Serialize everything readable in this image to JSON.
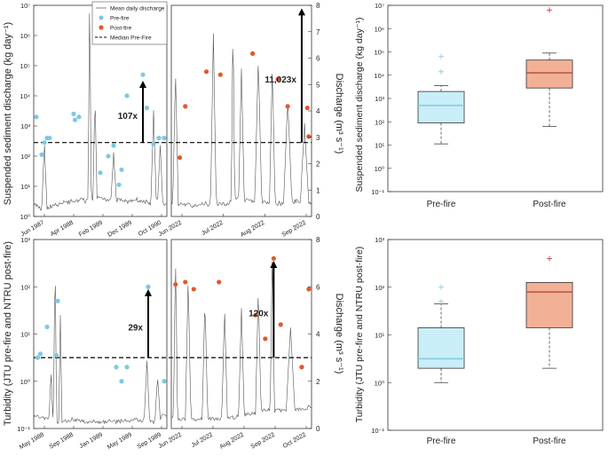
{
  "legend": {
    "mean_label": "Mean daily discharge",
    "pre_label": "Pre-fire",
    "post_label": "Post-fire",
    "median_label": "Median Pre-Fire"
  },
  "colors": {
    "pre": "#7ec8e3",
    "post": "#e0592b",
    "pre_box": "#c9eef7",
    "post_box": "#f2b196",
    "post_median": "#b5533a",
    "discharge_line": "#555555"
  },
  "chart_data": [
    {
      "type": "scatter",
      "ylabel": "Suspended sediment discharge (kg day⁻¹)",
      "yscale": "log",
      "ylim_exp": [
        0,
        7
      ],
      "ytick_labels": [
        "10⁰",
        "10¹",
        "10²",
        "10³",
        "10⁴",
        "10⁵",
        "10⁶",
        "10⁷"
      ],
      "y2label": "Discharge (m³ s⁻¹)",
      "y2lim": [
        0,
        8
      ],
      "y2ticks": [
        0,
        1,
        2,
        3,
        4,
        5,
        6,
        7,
        8
      ],
      "pre_xtick_labels": [
        "Jun 1987",
        "Apr 1988",
        "Feb 1989",
        "Dec 1989",
        "Oct 1990"
      ],
      "post_xtick_labels": [
        "Jun 2022",
        "Jul 2022",
        "Aug 2022",
        "Sep 2022"
      ],
      "pre_fire_points": [
        [
          0.02,
          3.3
        ],
        [
          0.06,
          2.05
        ],
        [
          0.08,
          2.45
        ],
        [
          0.1,
          2.6
        ],
        [
          0.12,
          2.6
        ],
        [
          0.3,
          3.4
        ],
        [
          0.31,
          3.2
        ],
        [
          0.34,
          3.3
        ],
        [
          0.5,
          1.45
        ],
        [
          0.56,
          2.0
        ],
        [
          0.6,
          2.35
        ],
        [
          0.64,
          1.05
        ],
        [
          0.66,
          1.55
        ],
        [
          0.7,
          4.0
        ],
        [
          0.82,
          4.7
        ],
        [
          0.85,
          3.6
        ],
        [
          0.9,
          2.4
        ],
        [
          0.94,
          2.6
        ],
        [
          0.98,
          2.6
        ]
      ],
      "post_fire_points": [
        [
          0.06,
          1.95
        ],
        [
          0.1,
          3.65
        ],
        [
          0.25,
          4.8
        ],
        [
          0.35,
          4.7
        ],
        [
          0.58,
          5.4
        ],
        [
          0.76,
          4.55
        ],
        [
          0.83,
          3.65
        ],
        [
          0.93,
          7.6
        ],
        [
          0.97,
          3.6
        ],
        [
          0.98,
          2.65
        ]
      ],
      "median_pre_fire": 2.45,
      "pre_arrow": {
        "label": "107x",
        "x": 0.82,
        "from": 2.45,
        "to": 4.5
      },
      "post_arrow": {
        "label": "11,023x",
        "x": 0.93,
        "from": 2.45,
        "to": 6.9
      }
    },
    {
      "type": "box",
      "ylabel": "Suspended sediment discharge (kg day⁻¹)",
      "yscale": "log",
      "ylim_exp": [
        -1,
        7
      ],
      "ytick_labels": [
        "10⁻¹",
        "10⁰",
        "10¹",
        "10²",
        "10³",
        "10⁴",
        "10⁵",
        "10⁶",
        "10⁷"
      ],
      "categories": [
        "Pre-fire",
        "Post-fire"
      ],
      "boxes": [
        {
          "whisker_low": 1.05,
          "q1": 1.95,
          "median": 2.7,
          "q3": 3.3,
          "whisker_high": 3.55,
          "outliers": [
            4.15,
            4.8
          ]
        },
        {
          "whisker_low": 1.8,
          "q1": 3.45,
          "median": 4.1,
          "q3": 4.65,
          "whisker_high": 4.95,
          "outliers": [
            6.8
          ]
        }
      ]
    },
    {
      "type": "scatter",
      "ylabel": "Turbidity (JTU pre-fire and NTRU post-fire)",
      "yscale": "log",
      "ylim_exp": [
        -1,
        3
      ],
      "ytick_labels": [
        "10⁻¹",
        "10⁰",
        "10¹",
        "10²",
        "10³"
      ],
      "y2label": "Discharge (m³ s⁻¹)",
      "y2lim": [
        0,
        8
      ],
      "y2ticks": [
        0,
        2,
        4,
        6,
        8
      ],
      "pre_xtick_labels": [
        "May 1988",
        "Sep 1988",
        "Jan 1989",
        "May 1989",
        "Sep 1989"
      ],
      "post_xtick_labels": [
        "Jun 2022",
        "Jul 2022",
        "Aug 2022",
        "Sep 2022",
        "Oct 2022"
      ],
      "pre_fire_points": [
        [
          0.03,
          0.5
        ],
        [
          0.05,
          0.58
        ],
        [
          0.1,
          1.15
        ],
        [
          0.17,
          0.55
        ],
        [
          0.18,
          1.7
        ],
        [
          0.62,
          0.3
        ],
        [
          0.66,
          0.0
        ],
        [
          0.7,
          0.3
        ],
        [
          0.86,
          2.0
        ],
        [
          0.98,
          0.0
        ]
      ],
      "post_fire_points": [
        [
          0.03,
          2.05
        ],
        [
          0.1,
          2.1
        ],
        [
          0.16,
          1.95
        ],
        [
          0.34,
          2.1
        ],
        [
          0.6,
          1.4
        ],
        [
          0.67,
          0.9
        ],
        [
          0.73,
          2.6
        ],
        [
          0.78,
          1.2
        ],
        [
          0.93,
          0.3
        ],
        [
          0.98,
          1.95
        ]
      ],
      "median_pre_fire": 0.5,
      "pre_arrow": {
        "label": "29x",
        "x": 0.86,
        "from": 0.5,
        "to": 1.95
      },
      "post_arrow": {
        "label": "120x",
        "x": 0.73,
        "from": 0.5,
        "to": 2.55
      }
    },
    {
      "type": "box",
      "ylabel": "Turbidity (JTU pre-fire and NTRU post-fire)",
      "yscale": "log",
      "ylim_exp": [
        -1,
        3
      ],
      "ytick_labels": [
        "10⁻¹",
        "10⁰",
        "10¹",
        "10²",
        "10³"
      ],
      "categories": [
        "Pre-fire",
        "Post-fire"
      ],
      "boxes": [
        {
          "whisker_low": 0.0,
          "q1": 0.3,
          "median": 0.5,
          "q3": 1.15,
          "whisker_high": 1.65,
          "outliers": [
            1.7,
            2.0
          ]
        },
        {
          "whisker_low": 0.3,
          "q1": 1.15,
          "median": 1.9,
          "q3": 2.1,
          "whisker_high": 2.1,
          "outliers": [
            2.6
          ]
        }
      ]
    }
  ]
}
